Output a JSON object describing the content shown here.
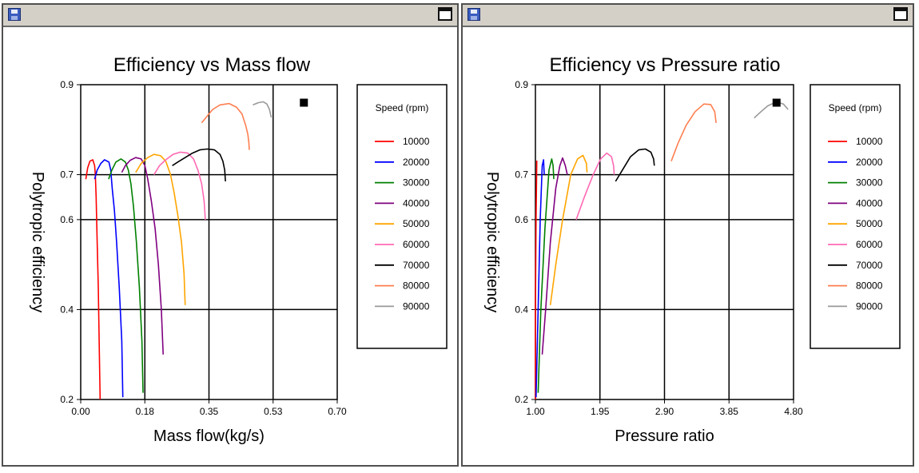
{
  "chart_data": [
    {
      "type": "line",
      "title": "Efficiency vs Mass flow",
      "xlabel": "Mass flow(kg/s)",
      "ylabel": "Polytropic efficiency",
      "xlim": [
        0,
        0.7
      ],
      "ylim": [
        0.2,
        0.9
      ],
      "x_tick_labels": [
        "0.00",
        "0.18",
        "0.35",
        "0.53",
        "0.70"
      ],
      "y_tick_labels": [
        "0.2",
        "0.4",
        "0.6",
        "0.7",
        "0.9"
      ],
      "grid": true,
      "legend_title": "Speed (rpm)",
      "legend_position": "right",
      "marker_point": {
        "x": 0.609,
        "y": 0.86
      },
      "series": [
        {
          "name": "10000",
          "color": "#ff0000",
          "points": [
            [
              0.053,
              0.2
            ],
            [
              0.05,
              0.35
            ],
            [
              0.048,
              0.45
            ],
            [
              0.045,
              0.55
            ],
            [
              0.042,
              0.65
            ],
            [
              0.04,
              0.7
            ],
            [
              0.038,
              0.72
            ],
            [
              0.033,
              0.733
            ],
            [
              0.025,
              0.73
            ],
            [
              0.019,
              0.715
            ],
            [
              0.014,
              0.69
            ]
          ]
        },
        {
          "name": "20000",
          "color": "#0000ff",
          "points": [
            [
              0.115,
              0.205
            ],
            [
              0.112,
              0.33
            ],
            [
              0.105,
              0.45
            ],
            [
              0.098,
              0.55
            ],
            [
              0.092,
              0.62
            ],
            [
              0.086,
              0.67
            ],
            [
              0.082,
              0.71
            ],
            [
              0.077,
              0.728
            ],
            [
              0.065,
              0.733
            ],
            [
              0.055,
              0.725
            ],
            [
              0.045,
              0.71
            ],
            [
              0.038,
              0.69
            ]
          ]
        },
        {
          "name": "30000",
          "color": "#008000",
          "points": [
            [
              0.17,
              0.215
            ],
            [
              0.167,
              0.33
            ],
            [
              0.16,
              0.45
            ],
            [
              0.152,
              0.55
            ],
            [
              0.144,
              0.63
            ],
            [
              0.137,
              0.68
            ],
            [
              0.13,
              0.71
            ],
            [
              0.122,
              0.728
            ],
            [
              0.11,
              0.735
            ],
            [
              0.096,
              0.728
            ],
            [
              0.085,
              0.71
            ],
            [
              0.076,
              0.69
            ]
          ]
        },
        {
          "name": "40000",
          "color": "#800080",
          "points": [
            [
              0.225,
              0.3
            ],
            [
              0.22,
              0.4
            ],
            [
              0.212,
              0.5
            ],
            [
              0.203,
              0.58
            ],
            [
              0.193,
              0.64
            ],
            [
              0.183,
              0.69
            ],
            [
              0.175,
              0.72
            ],
            [
              0.165,
              0.735
            ],
            [
              0.15,
              0.738
            ],
            [
              0.135,
              0.732
            ],
            [
              0.122,
              0.72
            ],
            [
              0.112,
              0.705
            ]
          ]
        },
        {
          "name": "50000",
          "color": "#ffa500",
          "points": [
            [
              0.285,
              0.41
            ],
            [
              0.282,
              0.48
            ],
            [
              0.275,
              0.55
            ],
            [
              0.265,
              0.61
            ],
            [
              0.255,
              0.66
            ],
            [
              0.245,
              0.7
            ],
            [
              0.232,
              0.73
            ],
            [
              0.218,
              0.742
            ],
            [
              0.2,
              0.745
            ],
            [
              0.183,
              0.738
            ],
            [
              0.165,
              0.725
            ],
            [
              0.15,
              0.705
            ]
          ]
        },
        {
          "name": "60000",
          "color": "#ff69b4",
          "points": [
            [
              0.34,
              0.6
            ],
            [
              0.337,
              0.64
            ],
            [
              0.33,
              0.68
            ],
            [
              0.32,
              0.71
            ],
            [
              0.308,
              0.735
            ],
            [
              0.292,
              0.748
            ],
            [
              0.272,
              0.75
            ],
            [
              0.252,
              0.745
            ],
            [
              0.232,
              0.733
            ],
            [
              0.215,
              0.72
            ],
            [
              0.2,
              0.7
            ]
          ]
        },
        {
          "name": "70000",
          "color": "#000000",
          "points": [
            [
              0.395,
              0.685
            ],
            [
              0.393,
              0.71
            ],
            [
              0.388,
              0.73
            ],
            [
              0.38,
              0.745
            ],
            [
              0.365,
              0.755
            ],
            [
              0.345,
              0.757
            ],
            [
              0.325,
              0.755
            ],
            [
              0.305,
              0.748
            ],
            [
              0.285,
              0.738
            ],
            [
              0.265,
              0.728
            ],
            [
              0.25,
              0.72
            ]
          ]
        },
        {
          "name": "80000",
          "color": "#ff7f50",
          "points": [
            [
              0.46,
              0.755
            ],
            [
              0.459,
              0.77
            ],
            [
              0.456,
              0.79
            ],
            [
              0.45,
              0.81
            ],
            [
              0.44,
              0.835
            ],
            [
              0.425,
              0.85
            ],
            [
              0.405,
              0.858
            ],
            [
              0.38,
              0.855
            ],
            [
              0.36,
              0.845
            ],
            [
              0.345,
              0.83
            ],
            [
              0.33,
              0.815
            ]
          ]
        },
        {
          "name": "90000",
          "color": "#999999",
          "points": [
            [
              0.52,
              0.827
            ],
            [
              0.515,
              0.845
            ],
            [
              0.508,
              0.857
            ],
            [
              0.498,
              0.862
            ],
            [
              0.485,
              0.86
            ],
            [
              0.47,
              0.855
            ]
          ]
        }
      ]
    },
    {
      "type": "line",
      "title": "Efficiency vs Pressure ratio",
      "xlabel": "Pressure ratio",
      "ylabel": "Polytropic efficiency",
      "xlim": [
        1.0,
        4.8
      ],
      "ylim": [
        0.2,
        0.9
      ],
      "x_tick_labels": [
        "1.00",
        "1.95",
        "2.90",
        "3.85",
        "4.80"
      ],
      "y_tick_labels": [
        "0.2",
        "0.4",
        "0.6",
        "0.7",
        "0.9"
      ],
      "grid": true,
      "legend_title": "Speed (rpm)",
      "legend_position": "right",
      "marker_point": {
        "x": 4.55,
        "y": 0.86
      },
      "series": [
        {
          "name": "10000",
          "color": "#ff0000",
          "points": [
            [
              1.0,
              0.2
            ],
            [
              1.0,
              0.4
            ],
            [
              1.01,
              0.6
            ],
            [
              1.02,
              0.73
            ],
            [
              1.03,
              0.73
            ]
          ]
        },
        {
          "name": "20000",
          "color": "#0000ff",
          "points": [
            [
              1.01,
              0.205
            ],
            [
              1.04,
              0.4
            ],
            [
              1.07,
              0.6
            ],
            [
              1.1,
              0.72
            ],
            [
              1.12,
              0.733
            ],
            [
              1.13,
              0.7
            ]
          ]
        },
        {
          "name": "30000",
          "color": "#008000",
          "points": [
            [
              1.04,
              0.215
            ],
            [
              1.08,
              0.4
            ],
            [
              1.14,
              0.58
            ],
            [
              1.2,
              0.71
            ],
            [
              1.24,
              0.735
            ],
            [
              1.26,
              0.72
            ],
            [
              1.27,
              0.69
            ]
          ]
        },
        {
          "name": "40000",
          "color": "#800080",
          "points": [
            [
              1.1,
              0.3
            ],
            [
              1.15,
              0.4
            ],
            [
              1.22,
              0.55
            ],
            [
              1.3,
              0.67
            ],
            [
              1.36,
              0.72
            ],
            [
              1.4,
              0.737
            ],
            [
              1.44,
              0.72
            ],
            [
              1.47,
              0.7
            ]
          ]
        },
        {
          "name": "50000",
          "color": "#ffa500",
          "points": [
            [
              1.22,
              0.41
            ],
            [
              1.3,
              0.5
            ],
            [
              1.4,
              0.6
            ],
            [
              1.52,
              0.7
            ],
            [
              1.62,
              0.735
            ],
            [
              1.7,
              0.743
            ],
            [
              1.75,
              0.725
            ],
            [
              1.76,
              0.705
            ]
          ]
        },
        {
          "name": "60000",
          "color": "#ff69b4",
          "points": [
            [
              1.6,
              0.6
            ],
            [
              1.72,
              0.65
            ],
            [
              1.85,
              0.7
            ],
            [
              1.96,
              0.735
            ],
            [
              2.05,
              0.748
            ],
            [
              2.12,
              0.74
            ],
            [
              2.15,
              0.72
            ],
            [
              2.16,
              0.7
            ]
          ]
        },
        {
          "name": "70000",
          "color": "#000000",
          "points": [
            [
              2.18,
              0.685
            ],
            [
              2.28,
              0.71
            ],
            [
              2.4,
              0.74
            ],
            [
              2.52,
              0.755
            ],
            [
              2.62,
              0.757
            ],
            [
              2.7,
              0.75
            ],
            [
              2.74,
              0.735
            ],
            [
              2.75,
              0.72
            ]
          ]
        },
        {
          "name": "80000",
          "color": "#ff7f50",
          "points": [
            [
              3.0,
              0.73
            ],
            [
              3.1,
              0.77
            ],
            [
              3.22,
              0.81
            ],
            [
              3.35,
              0.84
            ],
            [
              3.48,
              0.857
            ],
            [
              3.58,
              0.856
            ],
            [
              3.64,
              0.84
            ],
            [
              3.66,
              0.815
            ]
          ]
        },
        {
          "name": "90000",
          "color": "#999999",
          "points": [
            [
              4.22,
              0.826
            ],
            [
              4.32,
              0.84
            ],
            [
              4.42,
              0.853
            ],
            [
              4.55,
              0.862
            ],
            [
              4.65,
              0.857
            ],
            [
              4.72,
              0.845
            ]
          ]
        }
      ]
    }
  ]
}
